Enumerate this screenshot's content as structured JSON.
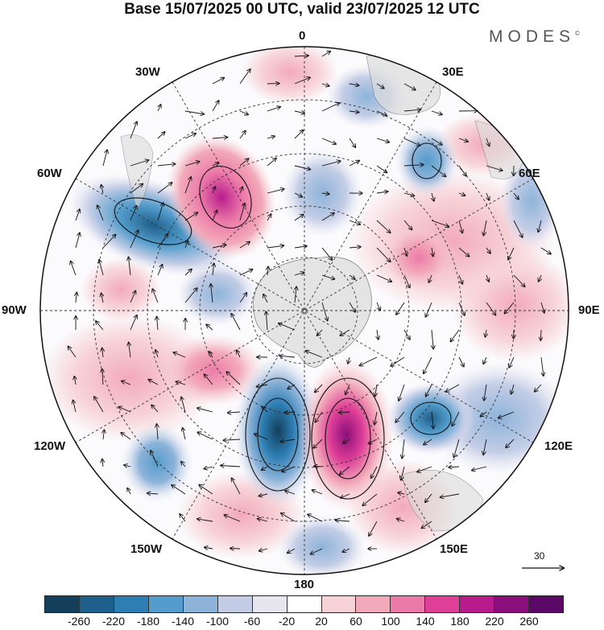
{
  "title": "Base 15/07/2025 00 UTC, valid 23/07/2025 12 UTC",
  "brand": "MODES",
  "brand_mark": "©",
  "lon_labels": [
    "0",
    "30E",
    "60E",
    "90E",
    "120E",
    "150E",
    "180",
    "150W",
    "120W",
    "90W",
    "60W",
    "30W"
  ],
  "reference_vector": "30",
  "colorbar": {
    "ticks": [
      "-260",
      "-220",
      "-180",
      "-140",
      "-100",
      "-60",
      "-20",
      "20",
      "60",
      "100",
      "140",
      "180",
      "220",
      "260"
    ],
    "colors": [
      "#143f5b",
      "#1f5f8b",
      "#2e7eb3",
      "#539ccb",
      "#8db3d9",
      "#c3cde6",
      "#e6e5f0",
      "#ffffff",
      "#f7d3d8",
      "#f2aab9",
      "#ec7aa9",
      "#de3f97",
      "#b81c8c",
      "#8a0e7b",
      "#5c0867"
    ]
  }
}
